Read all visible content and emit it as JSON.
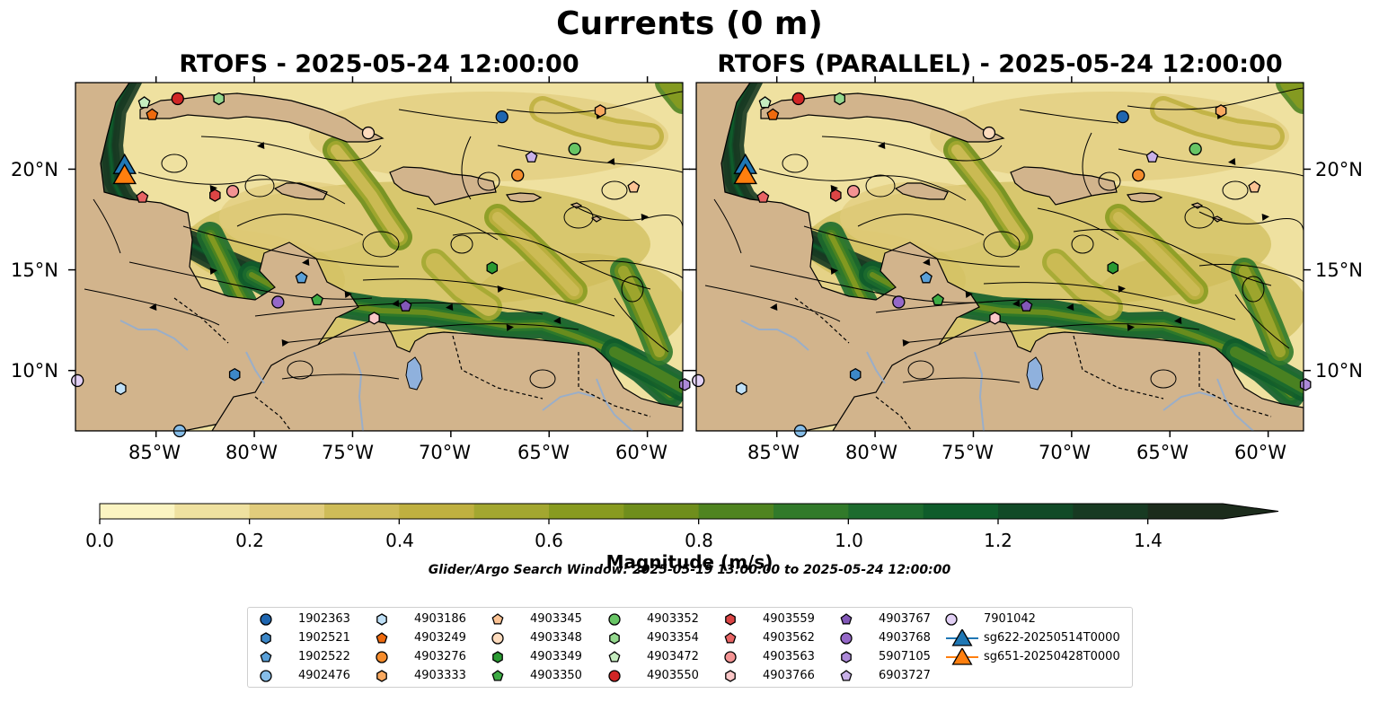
{
  "figure": {
    "title": "Currents (0 m)",
    "panels": [
      {
        "title": "RTOFS - 2025-05-24 12:00:00"
      },
      {
        "title": "RTOFS (PARALLEL) - 2025-05-24 12:00:00"
      }
    ],
    "lon_ticks": [
      "85°W",
      "80°W",
      "75°W",
      "70°W",
      "65°W",
      "60°W"
    ],
    "lat_ticks": [
      "20°N",
      "15°N",
      "10°N"
    ],
    "map_extent": {
      "lon": [
        -89.1,
        -58.2
      ],
      "lat": [
        7.0,
        24.3
      ]
    },
    "colors": {
      "land": "#d2b48c",
      "rivers_lakes": "#8fb1dd",
      "speed_scale": [
        "#fbf4c2",
        "#efe1a0",
        "#e1cc7c",
        "#cebc58",
        "#bfb040",
        "#a3a730",
        "#889b20",
        "#6f8e1c",
        "#4f8420",
        "#317a2a",
        "#1d6b2e",
        "#0f5c2b",
        "#114a27",
        "#173a22",
        "#1c2c1c"
      ]
    },
    "colorbar": {
      "label": "Magnitude (m/s)",
      "ticks": [
        "0.0",
        "0.2",
        "0.4",
        "0.6",
        "0.8",
        "1.0",
        "1.2",
        "1.4"
      ],
      "range": [
        0.0,
        1.5
      ],
      "extend": "max"
    },
    "search_window": "Glider/Argo Search Window: 2025-05-19 13:00:00 to 2025-05-24 12:00:00",
    "legend": [
      {
        "label": "1902363",
        "marker": "circle",
        "color": "#1f66b0"
      },
      {
        "label": "1902521",
        "marker": "hexagon",
        "color": "#3d88c8"
      },
      {
        "label": "1902522",
        "marker": "pentagon",
        "color": "#5aa0d8"
      },
      {
        "label": "4902476",
        "marker": "circle",
        "color": "#86bde8"
      },
      {
        "label": "4903186",
        "marker": "hexagon",
        "color": "#bfe0f7"
      },
      {
        "label": "4903249",
        "marker": "pentagon",
        "color": "#ee6a0e"
      },
      {
        "label": "4903276",
        "marker": "circle",
        "color": "#f58c2c"
      },
      {
        "label": "4903333",
        "marker": "hexagon",
        "color": "#f9a960"
      },
      {
        "label": "4903345",
        "marker": "pentagon",
        "color": "#fcc394"
      },
      {
        "label": "4903348",
        "marker": "circle",
        "color": "#fddbbd"
      },
      {
        "label": "4903349",
        "marker": "hexagon",
        "color": "#2a9a32"
      },
      {
        "label": "4903350",
        "marker": "pentagon",
        "color": "#3dab44"
      },
      {
        "label": "4903352",
        "marker": "circle",
        "color": "#68c565"
      },
      {
        "label": "4903354",
        "marker": "hexagon",
        "color": "#94d88e"
      },
      {
        "label": "4903472",
        "marker": "pentagon",
        "color": "#c5ecbf"
      },
      {
        "label": "4903550",
        "marker": "circle",
        "color": "#d12626"
      },
      {
        "label": "4903559",
        "marker": "hexagon",
        "color": "#dc4545"
      },
      {
        "label": "4903562",
        "marker": "pentagon",
        "color": "#e86464"
      },
      {
        "label": "4903563",
        "marker": "circle",
        "color": "#f39393"
      },
      {
        "label": "4903766",
        "marker": "hexagon",
        "color": "#fbc7c7"
      },
      {
        "label": "4903767",
        "marker": "pentagon",
        "color": "#8258b8"
      },
      {
        "label": "4903768",
        "marker": "circle",
        "color": "#9568c8"
      },
      {
        "label": "5907105",
        "marker": "hexagon",
        "color": "#ac89d8"
      },
      {
        "label": "6903727",
        "marker": "pentagon",
        "color": "#c9b1e8"
      },
      {
        "label": "7901042",
        "marker": "circle",
        "color": "#e2d0f5"
      },
      {
        "label": "sg622-20250514T0000",
        "marker": "triangle",
        "color": "#1f77b4"
      },
      {
        "label": "sg651-20250428T0000",
        "marker": "triangle",
        "color": "#ff7f0e"
      }
    ],
    "floats": [
      {
        "id": "1902363",
        "lon": [
          -67.4,
          -67.4
        ],
        "lat": [
          22.6,
          22.6
        ]
      },
      {
        "id": "1902521",
        "lon": [
          -81.0,
          -81.0
        ],
        "lat": [
          9.8,
          9.8
        ]
      },
      {
        "id": "1902522",
        "lon": [
          -77.6,
          -77.4
        ],
        "lat": [
          14.6,
          14.6
        ]
      },
      {
        "id": "4902476",
        "lon": [
          -83.8,
          -83.8
        ],
        "lat": [
          7.0,
          7.0
        ]
      },
      {
        "id": "4903186",
        "lon": [
          -86.8,
          -86.8
        ],
        "lat": [
          9.1,
          9.1
        ]
      },
      {
        "id": "4903249",
        "lon": [
          -85.2,
          -85.2
        ],
        "lat": [
          22.7,
          22.7
        ]
      },
      {
        "id": "4903276",
        "lon": [
          -66.6,
          -66.6
        ],
        "lat": [
          19.7,
          19.7
        ]
      },
      {
        "id": "4903333",
        "lon": [
          -62.4,
          -62.4
        ],
        "lat": [
          22.9,
          22.9
        ]
      },
      {
        "id": "4903345",
        "lon": [
          -60.7,
          -60.7
        ],
        "lat": [
          19.1,
          19.1
        ]
      },
      {
        "id": "4903348",
        "lon": [
          -74.2,
          -74.2
        ],
        "lat": [
          21.8,
          21.8
        ]
      },
      {
        "id": "4903349",
        "lon": [
          -67.9,
          -67.9
        ],
        "lat": [
          15.1,
          15.1
        ]
      },
      {
        "id": "4903350",
        "lon": [
          -76.8,
          -76.8
        ],
        "lat": [
          13.5,
          13.5
        ]
      },
      {
        "id": "4903352",
        "lon": [
          -63.7,
          -63.7
        ],
        "lat": [
          21.0,
          21.0
        ]
      },
      {
        "id": "4903354",
        "lon": [
          -81.8,
          -81.8
        ],
        "lat": [
          23.5,
          23.5
        ]
      },
      {
        "id": "4903472",
        "lon": [
          -85.6,
          -85.6
        ],
        "lat": [
          23.3,
          23.3
        ]
      },
      {
        "id": "4903550",
        "lon": [
          -83.9,
          -83.9
        ],
        "lat": [
          23.5,
          23.5
        ]
      },
      {
        "id": "4903559",
        "lon": [
          -82.0,
          -82.0
        ],
        "lat": [
          18.7,
          18.7
        ]
      },
      {
        "id": "4903562",
        "lon": [
          -85.7,
          -85.7
        ],
        "lat": [
          18.6,
          18.6
        ]
      },
      {
        "id": "4903563",
        "lon": [
          -81.1,
          -81.1
        ],
        "lat": [
          18.9,
          18.9
        ]
      },
      {
        "id": "4903766",
        "lon": [
          -73.9,
          -73.9
        ],
        "lat": [
          12.6,
          12.6
        ]
      },
      {
        "id": "4903767",
        "lon": [
          -72.3,
          -72.3
        ],
        "lat": [
          13.2,
          13.2
        ]
      },
      {
        "id": "4903768",
        "lon": [
          -78.8,
          -78.8
        ],
        "lat": [
          13.4,
          13.4
        ]
      },
      {
        "id": "5907105",
        "lon": [
          -58.1,
          -58.1
        ],
        "lat": [
          9.3,
          9.3
        ]
      },
      {
        "id": "6903727",
        "lon": [
          -65.9,
          -65.9
        ],
        "lat": [
          20.6,
          20.6
        ]
      },
      {
        "id": "7901042",
        "lon": [
          -89.0,
          -89.0
        ],
        "lat": [
          9.5,
          9.5
        ]
      }
    ],
    "gliders": [
      {
        "id": "sg622-20250514T0000",
        "lon": -86.6,
        "lat": 20.1
      },
      {
        "id": "sg651-20250428T0000",
        "lon": -86.6,
        "lat": 19.6
      }
    ]
  }
}
